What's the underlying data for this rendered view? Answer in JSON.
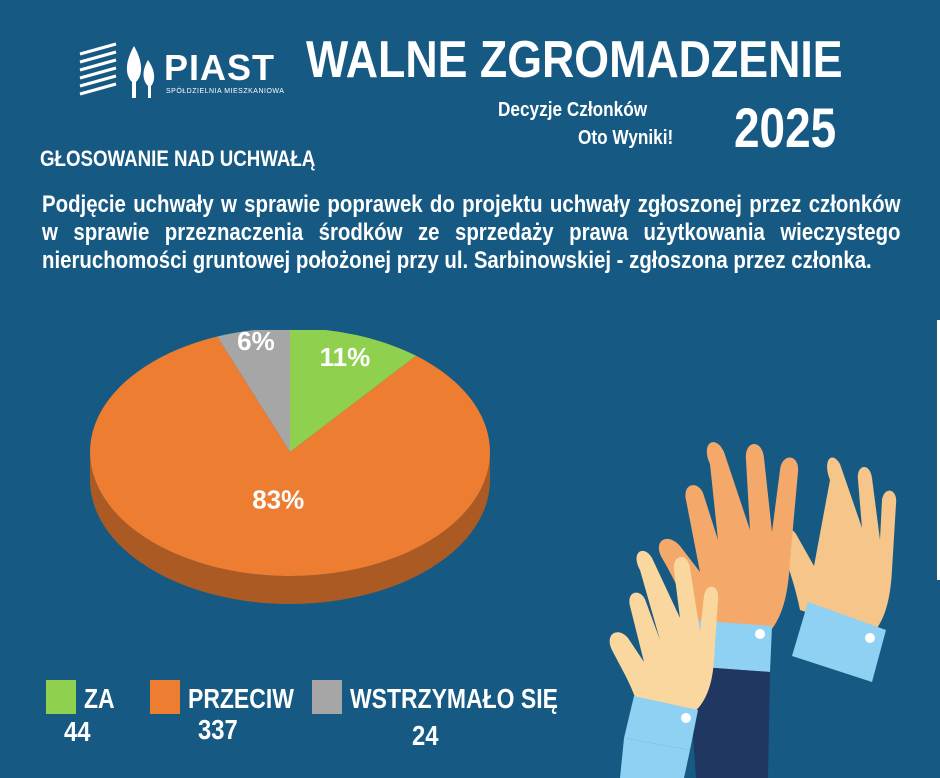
{
  "logo": {
    "name": "PIAST",
    "subtitle": "SPÓŁDZIELNIA MIESZKANIOWA"
  },
  "header": {
    "title": "WALNE ZGROMADZENIE",
    "subtitle_line1": "Decyzje Członków",
    "subtitle_line2": "Oto Wyniki!",
    "year": "2025"
  },
  "section_label": "GŁOSOWANIE NAD UCHWAŁĄ",
  "resolution_text": "Podjęcie uchwały w sprawie poprawek do projektu uchwały zgłoszonej przez członków w sprawie przeznaczenia środków ze sprzedaży prawa użytkowania wieczystego nieruchomości gruntowej położonej przy ul. Sarbinowskiej - zgłoszona przez członka.",
  "colors": {
    "background": "#165a84",
    "za": "#8fd14f",
    "przeciw": "#ed7d31",
    "wstrzymalo": "#a6a6a6"
  },
  "chart_data": {
    "type": "pie",
    "categories": [
      "ZA",
      "PRZECIW",
      "WSTRZYMAŁO SIĘ"
    ],
    "values": [
      44,
      337,
      24
    ],
    "percent_labels": [
      "11%",
      "83%",
      "6%"
    ],
    "colors": [
      "#8fd14f",
      "#ed7d31",
      "#a6a6a6"
    ],
    "title": "",
    "legend_position": "bottom"
  },
  "legend": [
    {
      "label": "ZA",
      "count": "44"
    },
    {
      "label": "PRZECIW",
      "count": "337"
    },
    {
      "label": "WSTRZYMAŁO SIĘ",
      "count": "24"
    }
  ],
  "illustration": "raised-hands-icon"
}
